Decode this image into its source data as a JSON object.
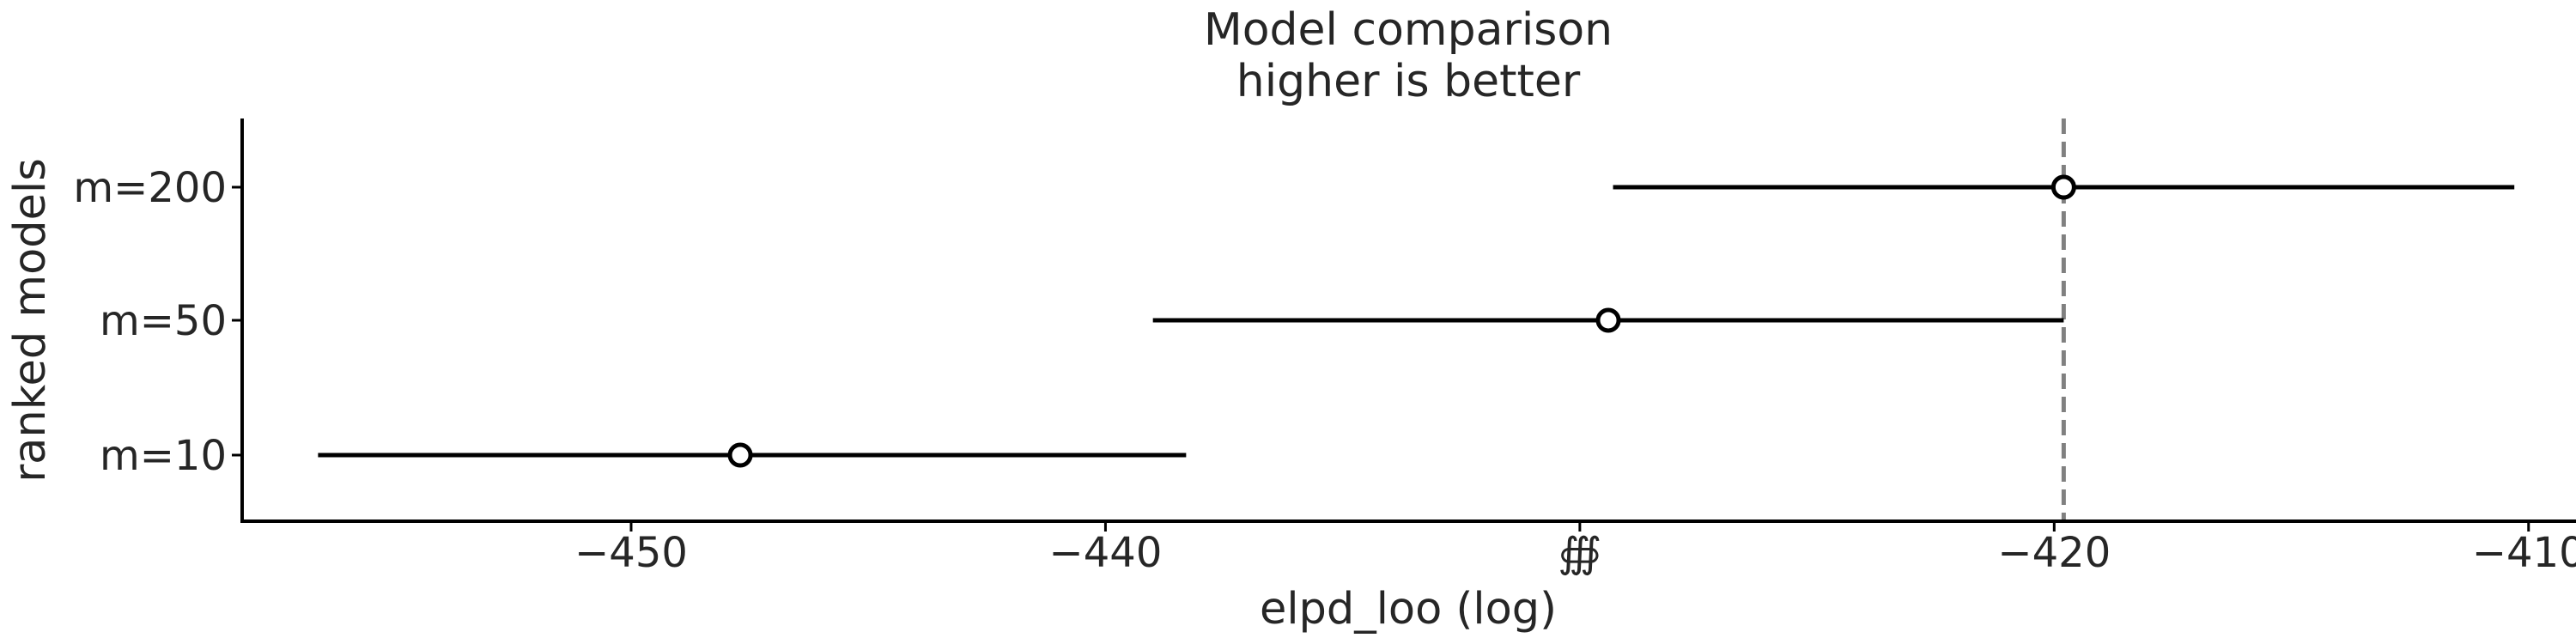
{
  "chart_data": {
    "type": "scatter",
    "title": "Model comparison",
    "subtitle": "higher is better",
    "xlabel": "elpd_loo (log)",
    "ylabel": "ranked models",
    "xlim": [
      -458.2,
      -409.0
    ],
    "x_ticks": [
      -450,
      -440,
      -430,
      -420,
      -410
    ],
    "x_tick_labels": [
      "−450",
      "−440",
      "∰",
      "−420",
      "−410"
    ],
    "reference_line": -419.8,
    "grid": false,
    "models": [
      {
        "label": "m=200",
        "elpd": -419.8,
        "low": -429.3,
        "high": -410.3
      },
      {
        "label": "m=50",
        "elpd": -429.4,
        "low": -439.0,
        "high": -419.8
      },
      {
        "label": "m=10",
        "elpd": -447.7,
        "low": -456.6,
        "high": -438.3
      }
    ],
    "colors": {
      "interval": "#000000",
      "marker_face": "#ffffff",
      "marker_edge": "#000000",
      "reference": "#808080",
      "text": "#262626",
      "axis": "#000000"
    }
  }
}
